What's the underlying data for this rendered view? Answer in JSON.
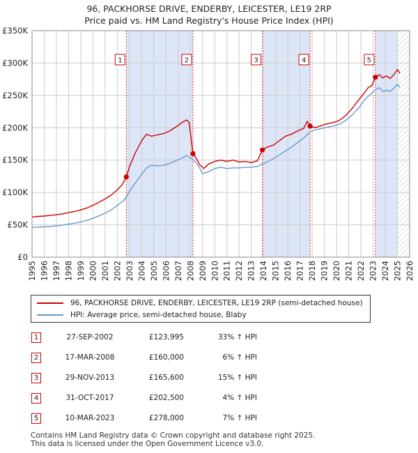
{
  "header": {
    "title_line1": "96, PACKHORSE DRIVE, ENDERBY, LEICESTER, LE19 2RP",
    "title_line2": "Price paid vs. HM Land Registry's House Price Index (HPI)"
  },
  "colors": {
    "property": "#cc0000",
    "hpi": "#6699cc",
    "shade": "#dde6f7",
    "grid": "#cccccc"
  },
  "chart_data": {
    "type": "line",
    "ylim": [
      0,
      350000
    ],
    "xlim": [
      1995,
      2026
    ],
    "y_ticks": [
      0,
      50000,
      100000,
      150000,
      200000,
      250000,
      300000,
      350000
    ],
    "y_tick_labels": [
      "£0",
      "£50K",
      "£100K",
      "£150K",
      "£200K",
      "£250K",
      "£300K",
      "£350K"
    ],
    "x_ticks": [
      1995,
      1996,
      1997,
      1998,
      1999,
      2000,
      2001,
      2002,
      2003,
      2004,
      2005,
      2006,
      2007,
      2008,
      2009,
      2010,
      2011,
      2012,
      2013,
      2014,
      2015,
      2016,
      2017,
      2018,
      2019,
      2020,
      2021,
      2022,
      2023,
      2024,
      2025,
      2026
    ],
    "x_tick_labels": [
      "1995",
      "1996",
      "1997",
      "1998",
      "1999",
      "2000",
      "2001",
      "2002",
      "2003",
      "2004",
      "2005",
      "2006",
      "2007",
      "2008",
      "2009",
      "2010",
      "2011",
      "2012",
      "2013",
      "2014",
      "2015",
      "2016",
      "2017",
      "2018",
      "2019",
      "2020",
      "2021",
      "2022",
      "2023",
      "2024",
      "2025",
      "2026"
    ],
    "series": [
      {
        "name": "96, PACKHORSE DRIVE, ENDERBY, LEICESTER, LE19 2RP (semi-detached house)",
        "color": "#cc0000",
        "points": [
          [
            1995.0,
            62000
          ],
          [
            1995.5,
            63000
          ],
          [
            1996.0,
            63500
          ],
          [
            1996.5,
            64500
          ],
          [
            1997.0,
            65500
          ],
          [
            1997.5,
            67000
          ],
          [
            1998.0,
            69000
          ],
          [
            1998.5,
            70500
          ],
          [
            1999.0,
            73000
          ],
          [
            1999.5,
            76000
          ],
          [
            2000.0,
            80000
          ],
          [
            2000.5,
            85000
          ],
          [
            2001.0,
            90000
          ],
          [
            2001.5,
            96000
          ],
          [
            2002.0,
            104000
          ],
          [
            2002.4,
            112000
          ],
          [
            2002.74,
            123995
          ],
          [
            2003.0,
            140000
          ],
          [
            2003.5,
            162000
          ],
          [
            2004.0,
            180000
          ],
          [
            2004.4,
            190000
          ],
          [
            2004.8,
            187000
          ],
          [
            2005.3,
            189000
          ],
          [
            2005.8,
            191000
          ],
          [
            2006.3,
            195000
          ],
          [
            2006.8,
            201000
          ],
          [
            2007.3,
            208000
          ],
          [
            2007.7,
            212000
          ],
          [
            2007.9,
            208000
          ],
          [
            2008.21,
            160000
          ],
          [
            2008.5,
            152000
          ],
          [
            2008.8,
            142000
          ],
          [
            2009.1,
            137000
          ],
          [
            2009.5,
            144000
          ],
          [
            2010.0,
            148000
          ],
          [
            2010.5,
            150000
          ],
          [
            2011.0,
            148000
          ],
          [
            2011.5,
            150000
          ],
          [
            2012.0,
            147000
          ],
          [
            2012.5,
            148000
          ],
          [
            2013.0,
            146000
          ],
          [
            2013.5,
            149000
          ],
          [
            2013.91,
            165600
          ],
          [
            2014.3,
            170000
          ],
          [
            2014.8,
            173000
          ],
          [
            2015.3,
            180000
          ],
          [
            2015.8,
            187000
          ],
          [
            2016.3,
            190000
          ],
          [
            2016.8,
            195000
          ],
          [
            2017.3,
            199000
          ],
          [
            2017.6,
            210000
          ],
          [
            2017.83,
            202500
          ],
          [
            2018.2,
            200000
          ],
          [
            2018.7,
            203000
          ],
          [
            2019.2,
            206000
          ],
          [
            2019.7,
            208000
          ],
          [
            2020.2,
            211000
          ],
          [
            2020.7,
            218000
          ],
          [
            2021.2,
            228000
          ],
          [
            2021.7,
            240000
          ],
          [
            2022.2,
            252000
          ],
          [
            2022.6,
            262000
          ],
          [
            2022.9,
            265000
          ],
          [
            2023.19,
            278000
          ],
          [
            2023.5,
            282000
          ],
          [
            2023.8,
            277000
          ],
          [
            2024.1,
            280000
          ],
          [
            2024.4,
            276000
          ],
          [
            2024.7,
            282000
          ],
          [
            2025.0,
            290000
          ],
          [
            2025.2,
            284000
          ]
        ]
      },
      {
        "name": "HPI: Average price, semi-detached house, Blaby",
        "color": "#6699cc",
        "points": [
          [
            1995.0,
            46000
          ],
          [
            1995.5,
            46500
          ],
          [
            1996.0,
            47000
          ],
          [
            1996.5,
            47500
          ],
          [
            1997.0,
            48500
          ],
          [
            1997.5,
            49500
          ],
          [
            1998.0,
            51000
          ],
          [
            1998.5,
            52500
          ],
          [
            1999.0,
            54500
          ],
          [
            1999.5,
            57000
          ],
          [
            2000.0,
            60000
          ],
          [
            2000.5,
            64000
          ],
          [
            2001.0,
            68000
          ],
          [
            2001.5,
            73000
          ],
          [
            2002.0,
            80000
          ],
          [
            2002.5,
            87000
          ],
          [
            2002.74,
            93000
          ],
          [
            2003.0,
            102000
          ],
          [
            2003.5,
            115000
          ],
          [
            2004.0,
            128000
          ],
          [
            2004.4,
            138000
          ],
          [
            2004.8,
            142000
          ],
          [
            2005.3,
            141000
          ],
          [
            2005.8,
            142000
          ],
          [
            2006.3,
            145000
          ],
          [
            2006.8,
            149000
          ],
          [
            2007.3,
            153000
          ],
          [
            2007.7,
            157000
          ],
          [
            2008.21,
            151000
          ],
          [
            2008.6,
            143000
          ],
          [
            2009.0,
            129000
          ],
          [
            2009.5,
            132000
          ],
          [
            2010.0,
            137000
          ],
          [
            2010.5,
            139000
          ],
          [
            2011.0,
            137000
          ],
          [
            2011.5,
            138000
          ],
          [
            2012.0,
            138000
          ],
          [
            2012.5,
            139000
          ],
          [
            2013.0,
            139000
          ],
          [
            2013.5,
            140000
          ],
          [
            2013.91,
            144000
          ],
          [
            2014.3,
            147000
          ],
          [
            2014.8,
            152000
          ],
          [
            2015.3,
            158000
          ],
          [
            2015.8,
            164000
          ],
          [
            2016.3,
            170000
          ],
          [
            2016.8,
            177000
          ],
          [
            2017.3,
            184000
          ],
          [
            2017.83,
            194000
          ],
          [
            2018.3,
            197000
          ],
          [
            2018.8,
            199000
          ],
          [
            2019.3,
            201000
          ],
          [
            2019.8,
            203000
          ],
          [
            2020.3,
            206000
          ],
          [
            2020.8,
            212000
          ],
          [
            2021.3,
            220000
          ],
          [
            2021.8,
            230000
          ],
          [
            2022.3,
            243000
          ],
          [
            2022.8,
            252000
          ],
          [
            2023.19,
            259000
          ],
          [
            2023.5,
            262000
          ],
          [
            2023.8,
            256000
          ],
          [
            2024.1,
            258000
          ],
          [
            2024.4,
            256000
          ],
          [
            2024.7,
            261000
          ],
          [
            2025.0,
            267000
          ],
          [
            2025.2,
            262000
          ]
        ]
      }
    ],
    "sales": [
      {
        "n": "1",
        "x": 2002.74,
        "y": 123995
      },
      {
        "n": "2",
        "x": 2008.21,
        "y": 160000
      },
      {
        "n": "3",
        "x": 2013.91,
        "y": 165600
      },
      {
        "n": "4",
        "x": 2017.83,
        "y": 202500
      },
      {
        "n": "5",
        "x": 2023.19,
        "y": 278000
      }
    ],
    "shaded_ranges": [
      [
        2002.74,
        2008.21
      ],
      [
        2013.91,
        2017.83
      ],
      [
        2023.19,
        2025.0
      ]
    ],
    "hatch_from": 2025.0
  },
  "legend": {
    "property_label": "96, PACKHORSE DRIVE, ENDERBY, LEICESTER, LE19 2RP (semi-detached house)",
    "hpi_label": "HPI: Average price, semi-detached house, Blaby"
  },
  "sales_table": [
    {
      "n": "1",
      "date": "27-SEP-2002",
      "price": "£123,995",
      "hpi": "33% ↑ HPI"
    },
    {
      "n": "2",
      "date": "17-MAR-2008",
      "price": "£160,000",
      "hpi": "6% ↑ HPI"
    },
    {
      "n": "3",
      "date": "29-NOV-2013",
      "price": "£165,600",
      "hpi": "15% ↑ HPI"
    },
    {
      "n": "4",
      "date": "31-OCT-2017",
      "price": "£202,500",
      "hpi": "4% ↑ HPI"
    },
    {
      "n": "5",
      "date": "10-MAR-2023",
      "price": "£278,000",
      "hpi": "7% ↑ HPI"
    }
  ],
  "footer": {
    "line1": "Contains HM Land Registry data © Crown copyright and database right 2025.",
    "line2": "This data is licensed under the Open Government Licence v3.0."
  }
}
